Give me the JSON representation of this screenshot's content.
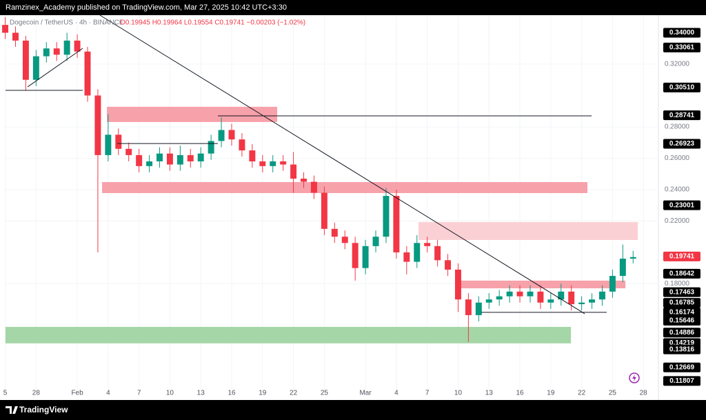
{
  "header": {
    "author_line": "Ramzinex_Academy published on TradingView.com, Mar 27, 2025 10:42 UTC+3:30"
  },
  "footer": {
    "brand": "TradingView"
  },
  "chart_data": {
    "type": "candlestick",
    "symbol": "Dogecoin / TetherUS · 4h · BINANCE",
    "ohlc_text": "O0.19945 H0.19964 L0.19554 C0.19741 −0.00203 (−1.02%)",
    "up_color": "#089981",
    "down_color": "#f23645",
    "x": [
      -7,
      -6,
      -5,
      -4,
      -3,
      -2,
      -1,
      0,
      1,
      2,
      3,
      4,
      5,
      6,
      7,
      8,
      9,
      10,
      11,
      12,
      13,
      14,
      15,
      16,
      17,
      18,
      19,
      20,
      21,
      22,
      23,
      24,
      25,
      26,
      27,
      28,
      29,
      30,
      31,
      32,
      33,
      34,
      35,
      36,
      37,
      38,
      39,
      40,
      41,
      42,
      43,
      44,
      45,
      46,
      47,
      48,
      49,
      50,
      51,
      52,
      53,
      54
    ],
    "open": [
      0.345,
      0.34,
      0.335,
      0.31,
      0.325,
      0.33,
      0.326,
      0.335,
      0.328,
      0.3,
      0.262,
      0.275,
      0.266,
      0.262,
      0.255,
      0.258,
      0.263,
      0.256,
      0.262,
      0.258,
      0.263,
      0.271,
      0.278,
      0.272,
      0.265,
      0.258,
      0.255,
      0.258,
      0.256,
      0.247,
      0.245,
      0.238,
      0.215,
      0.21,
      0.206,
      0.19,
      0.204,
      0.21,
      0.236,
      0.2,
      0.194,
      0.206,
      0.204,
      0.195,
      0.189,
      0.17,
      0.16,
      0.168,
      0.17,
      0.172,
      0.175,
      0.172,
      0.175,
      0.168,
      0.17,
      0.175,
      0.167,
      0.168,
      0.17,
      0.175,
      0.185,
      0.196
    ],
    "high": [
      0.35,
      0.344,
      0.338,
      0.329,
      0.334,
      0.334,
      0.34,
      0.339,
      0.331,
      0.304,
      0.288,
      0.279,
      0.27,
      0.266,
      0.262,
      0.267,
      0.267,
      0.268,
      0.266,
      0.267,
      0.275,
      0.286,
      0.282,
      0.276,
      0.269,
      0.262,
      0.262,
      0.262,
      0.264,
      0.251,
      0.249,
      0.242,
      0.219,
      0.214,
      0.21,
      0.208,
      0.214,
      0.241,
      0.24,
      0.204,
      0.211,
      0.21,
      0.208,
      0.199,
      0.193,
      0.174,
      0.172,
      0.174,
      0.176,
      0.179,
      0.179,
      0.179,
      0.179,
      0.174,
      0.18,
      0.179,
      0.172,
      0.174,
      0.179,
      0.189,
      0.205,
      0.201
    ],
    "low": [
      0.336,
      0.331,
      0.303,
      0.306,
      0.321,
      0.322,
      0.322,
      0.324,
      0.296,
      0.2,
      0.258,
      0.262,
      0.258,
      0.251,
      0.251,
      0.254,
      0.252,
      0.252,
      0.254,
      0.254,
      0.259,
      0.267,
      0.268,
      0.261,
      0.254,
      0.251,
      0.251,
      0.252,
      0.238,
      0.241,
      0.234,
      0.211,
      0.206,
      0.202,
      0.182,
      0.186,
      0.2,
      0.206,
      0.196,
      0.186,
      0.19,
      0.2,
      0.191,
      0.185,
      0.162,
      0.143,
      0.156,
      0.164,
      0.166,
      0.168,
      0.168,
      0.168,
      0.164,
      0.164,
      0.166,
      0.163,
      0.163,
      0.164,
      0.166,
      0.171,
      0.181,
      0.193
    ],
    "close": [
      0.34,
      0.335,
      0.31,
      0.325,
      0.33,
      0.326,
      0.335,
      0.328,
      0.3,
      0.262,
      0.275,
      0.266,
      0.262,
      0.255,
      0.258,
      0.263,
      0.256,
      0.262,
      0.258,
      0.263,
      0.271,
      0.278,
      0.272,
      0.265,
      0.258,
      0.255,
      0.258,
      0.256,
      0.247,
      0.245,
      0.238,
      0.215,
      0.21,
      0.206,
      0.19,
      0.204,
      0.21,
      0.236,
      0.2,
      0.194,
      0.206,
      0.204,
      0.195,
      0.189,
      0.17,
      0.16,
      0.168,
      0.17,
      0.172,
      0.175,
      0.172,
      0.175,
      0.168,
      0.17,
      0.175,
      0.167,
      0.168,
      0.17,
      0.175,
      0.185,
      0.196,
      0.197
    ],
    "xlim": [
      -6.97,
      56.46
    ],
    "ylim": [
      0.1103,
      0.3512
    ],
    "xticks": [
      {
        "value": -7,
        "label": "5"
      },
      {
        "value": -4,
        "label": "28"
      },
      {
        "value": 0,
        "label": "Feb"
      },
      {
        "value": 3,
        "label": "4"
      },
      {
        "value": 6,
        "label": "7"
      },
      {
        "value": 9,
        "label": "10"
      },
      {
        "value": 12,
        "label": "13"
      },
      {
        "value": 15,
        "label": "16"
      },
      {
        "value": 18,
        "label": "19"
      },
      {
        "value": 21,
        "label": "22"
      },
      {
        "value": 24,
        "label": "25"
      },
      {
        "value": 28,
        "label": "Mar"
      },
      {
        "value": 31,
        "label": "4"
      },
      {
        "value": 34,
        "label": "7"
      },
      {
        "value": 37,
        "label": "10"
      },
      {
        "value": 40,
        "label": "13"
      },
      {
        "value": 43,
        "label": "16"
      },
      {
        "value": 46,
        "label": "19"
      },
      {
        "value": 49,
        "label": "22"
      },
      {
        "value": 52,
        "label": "25"
      },
      {
        "value": 55,
        "label": "28"
      }
    ],
    "yticks": [
      {
        "value": 0.32,
        "label": "0.32000"
      },
      {
        "value": 0.28,
        "label": "0.28000"
      },
      {
        "value": 0.26,
        "label": "0.26000"
      },
      {
        "value": 0.24,
        "label": "0.24000"
      },
      {
        "value": 0.22,
        "label": "0.22000"
      },
      {
        "value": 0.18,
        "label": "0.18000"
      }
    ],
    "price_labels": [
      {
        "value": 0.34,
        "label": "0.34000"
      },
      {
        "value": 0.33061,
        "label": "0.33061"
      },
      {
        "value": 0.3051,
        "label": "0.30510"
      },
      {
        "value": 0.28741,
        "label": "0.28741"
      },
      {
        "value": 0.26923,
        "label": "0.26923"
      },
      {
        "value": 0.23001,
        "label": "0.23001"
      },
      {
        "value": 0.18642,
        "label": "0.18642"
      },
      {
        "value": 0.17463,
        "label": "0.17463"
      },
      {
        "value": 0.16785,
        "label": "0.16785"
      },
      {
        "value": 0.16174,
        "label": "0.16174"
      },
      {
        "value": 0.15646,
        "label": "0.15646"
      },
      {
        "value": 0.14886,
        "label": "0.14886"
      },
      {
        "value": 0.14219,
        "label": "0.14219"
      },
      {
        "value": 0.13816,
        "label": "0.13816"
      },
      {
        "value": 0.12669,
        "label": "0.12669"
      },
      {
        "value": 0.11807,
        "label": "0.11807"
      }
    ],
    "last_price": {
      "value": 0.19741,
      "label": "0.19741"
    },
    "zones": [
      {
        "x0": 2.88,
        "x1": 19.42,
        "y0": 0.2831,
        "y1": 0.2928,
        "color": "#f7a1aa"
      },
      {
        "x0": 2.41,
        "x1": 49.56,
        "y0": 0.2378,
        "y1": 0.2448,
        "color": "#f7a1aa"
      },
      {
        "x0": 33.15,
        "x1": 54.45,
        "y0": 0.2079,
        "y1": 0.2193,
        "color": "#fbd0d4"
      },
      {
        "x0": 37.24,
        "x1": 53.25,
        "y0": 0.1771,
        "y1": 0.182,
        "color": "#f7a1aa"
      },
      {
        "x0": -6.97,
        "x1": 47.96,
        "y0": 0.142,
        "y1": 0.1525,
        "color": "#a5d6a7"
      }
    ],
    "lines": [
      {
        "x": [
          2.2,
          49.3
        ],
        "y": [
          0.3512,
          0.1609
        ]
      },
      {
        "x": [
          -6.97,
          0.54
        ],
        "y": [
          0.3033,
          0.3033
        ]
      },
      {
        "x": [
          -4.82,
          0.54
        ],
        "y": [
          0.3055,
          0.3301
        ]
      },
      {
        "x": [
          13.66,
          49.97
        ],
        "y": [
          0.287,
          0.287
        ]
      },
      {
        "x": [
          3.88,
          13.66
        ],
        "y": [
          0.2694,
          0.2694
        ]
      },
      {
        "x": [
          39.25,
          51.44
        ],
        "y": [
          0.1618,
          0.1618
        ]
      }
    ]
  }
}
